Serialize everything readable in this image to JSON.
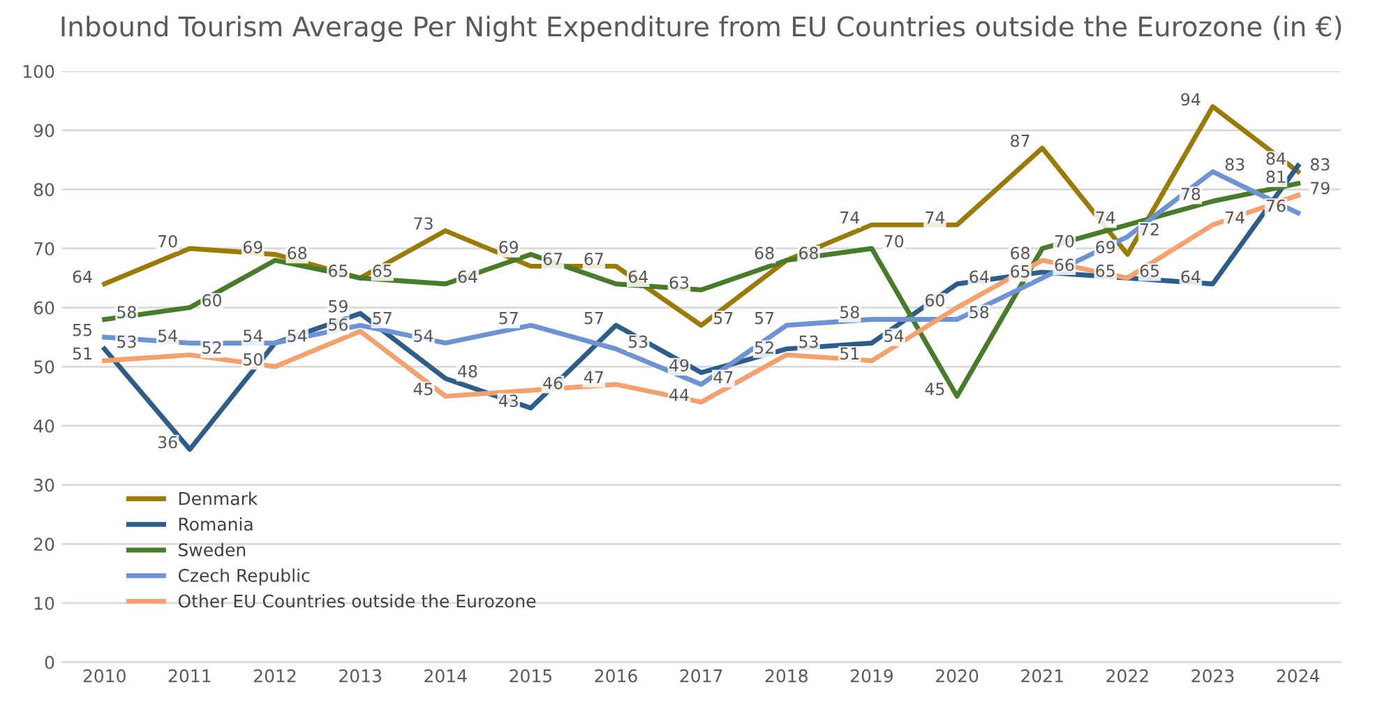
{
  "chart_data": {
    "type": "line",
    "title": "Inbound Tourism Average Per Night Expenditure from EU Countries outside the Eurozone (in €)",
    "categories": [
      "2010",
      "2011",
      "2012",
      "2013",
      "2014",
      "2015",
      "2016",
      "2017",
      "2018",
      "2019",
      "2020",
      "2021",
      "2022",
      "2023",
      "2024"
    ],
    "series": [
      {
        "name": "Denmark",
        "color": "#9a7b0a",
        "values": [
          64,
          70,
          69,
          65,
          73,
          67,
          67,
          57,
          68,
          74,
          74,
          87,
          69,
          94,
          83
        ]
      },
      {
        "name": "Romania",
        "color": "#2e5d8a",
        "values": [
          53,
          36,
          54,
          59,
          48,
          43,
          57,
          49,
          53,
          54,
          64,
          66,
          65,
          64,
          84
        ]
      },
      {
        "name": "Sweden",
        "color": "#4a7a2c",
        "values": [
          58,
          60,
          68,
          65,
          64,
          69,
          64,
          63,
          68,
          70,
          45,
          70,
          74,
          78,
          81
        ]
      },
      {
        "name": "Czech Republic",
        "color": "#6f93d1",
        "values": [
          55,
          54,
          54,
          57,
          54,
          57,
          53,
          47,
          57,
          58,
          58,
          65,
          72,
          83,
          76
        ]
      },
      {
        "name": "Other EU Countries outside the Eurozone",
        "color": "#f2a271",
        "values": [
          51,
          52,
          50,
          56,
          45,
          46,
          47,
          44,
          52,
          51,
          60,
          68,
          65,
          74,
          79
        ]
      }
    ],
    "ylim": [
      0,
      100
    ],
    "yticks": [
      0,
      10,
      20,
      30,
      40,
      50,
      60,
      70,
      80,
      90,
      100
    ],
    "grid": "y",
    "legend": "bottom left",
    "data_labels": true,
    "marker": "none",
    "line_style": "solid"
  }
}
